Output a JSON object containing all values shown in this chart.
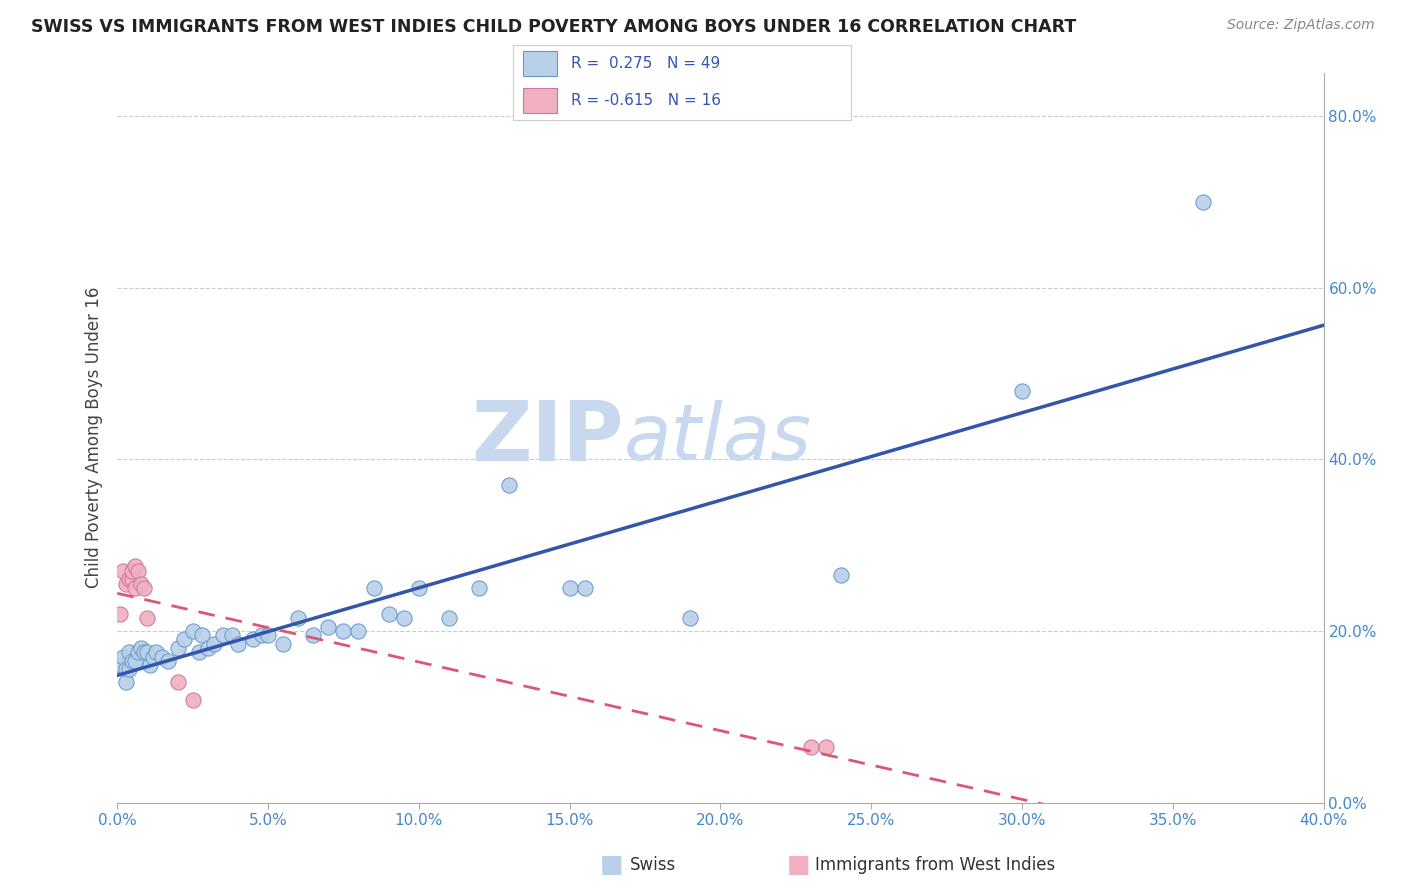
{
  "title": "SWISS VS IMMIGRANTS FROM WEST INDIES CHILD POVERTY AMONG BOYS UNDER 16 CORRELATION CHART",
  "source": "Source: ZipAtlas.com",
  "ylabel": "Child Poverty Among Boys Under 16",
  "legend_label1": "Swiss",
  "legend_label2": "Immigrants from West Indies",
  "r1": 0.275,
  "n1": 49,
  "r2": -0.615,
  "n2": 16,
  "xlim": [
    0.0,
    0.4
  ],
  "ylim": [
    0.0,
    0.85
  ],
  "xticks": [
    0.0,
    0.05,
    0.1,
    0.15,
    0.2,
    0.25,
    0.3,
    0.35,
    0.4
  ],
  "yticks_right": [
    0.0,
    0.2,
    0.4,
    0.6,
    0.8
  ],
  "color_swiss_fill": "#b8d0e8",
  "color_swiss_edge": "#6699cc",
  "color_wi_fill": "#f0b0c0",
  "color_wi_edge": "#cc7799",
  "color_blue_line": "#3355aa",
  "color_pink_line": "#dd5577",
  "swiss_x": [
    0.001,
    0.002,
    0.003,
    0.003,
    0.004,
    0.004,
    0.005,
    0.006,
    0.007,
    0.008,
    0.009,
    0.01,
    0.011,
    0.012,
    0.013,
    0.015,
    0.017,
    0.02,
    0.022,
    0.025,
    0.027,
    0.028,
    0.03,
    0.032,
    0.035,
    0.038,
    0.04,
    0.045,
    0.048,
    0.05,
    0.055,
    0.06,
    0.065,
    0.07,
    0.075,
    0.08,
    0.085,
    0.09,
    0.095,
    0.1,
    0.11,
    0.12,
    0.13,
    0.15,
    0.155,
    0.19,
    0.24,
    0.3,
    0.36
  ],
  "swiss_y": [
    0.16,
    0.17,
    0.155,
    0.14,
    0.175,
    0.155,
    0.165,
    0.165,
    0.175,
    0.18,
    0.175,
    0.175,
    0.16,
    0.17,
    0.175,
    0.17,
    0.165,
    0.18,
    0.19,
    0.2,
    0.175,
    0.195,
    0.18,
    0.185,
    0.195,
    0.195,
    0.185,
    0.19,
    0.195,
    0.195,
    0.185,
    0.215,
    0.195,
    0.205,
    0.2,
    0.2,
    0.25,
    0.22,
    0.215,
    0.25,
    0.215,
    0.25,
    0.37,
    0.25,
    0.25,
    0.215,
    0.265,
    0.48,
    0.7
  ],
  "wi_x": [
    0.001,
    0.002,
    0.003,
    0.004,
    0.005,
    0.005,
    0.006,
    0.006,
    0.007,
    0.008,
    0.009,
    0.01,
    0.02,
    0.025,
    0.23,
    0.235
  ],
  "wi_y": [
    0.22,
    0.27,
    0.255,
    0.26,
    0.26,
    0.27,
    0.275,
    0.25,
    0.27,
    0.255,
    0.25,
    0.215,
    0.14,
    0.12,
    0.065,
    0.065
  ]
}
